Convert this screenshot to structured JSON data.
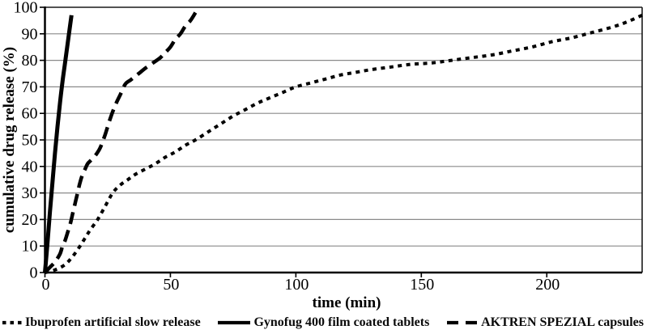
{
  "figure_name": "dissolution-profile-chart",
  "colors": {
    "line": "#000000",
    "grid": "#8a8a8a",
    "axis": "#000000",
    "border": "#1a1a1a",
    "text": "#000000",
    "background": "#ffffff"
  },
  "chart_data": {
    "type": "line",
    "title": "",
    "xlabel": "time (min)",
    "ylabel": "cumulative drug release (%)",
    "xlim": [
      0,
      238
    ],
    "ylim": [
      0,
      100
    ],
    "x_ticks": [
      0,
      50,
      100,
      150,
      200
    ],
    "y_ticks": [
      0,
      10,
      20,
      30,
      40,
      50,
      60,
      70,
      80,
      90,
      100
    ],
    "grid": "horizontal",
    "legend_position": "bottom",
    "series": [
      {
        "name": "Ibuprofen artificial slow release",
        "style": "dotted",
        "color": "#000000",
        "points": [
          [
            0,
            0
          ],
          [
            4,
            1
          ],
          [
            8,
            3
          ],
          [
            11,
            6
          ],
          [
            14,
            10
          ],
          [
            16,
            13
          ],
          [
            18,
            16
          ],
          [
            21,
            20
          ],
          [
            24,
            25
          ],
          [
            27,
            30
          ],
          [
            30,
            33
          ],
          [
            33,
            35
          ],
          [
            36,
            37
          ],
          [
            40,
            39
          ],
          [
            44,
            41
          ],
          [
            48,
            43.5
          ],
          [
            52,
            45.5
          ],
          [
            56,
            48
          ],
          [
            60,
            50
          ],
          [
            65,
            53
          ],
          [
            70,
            56
          ],
          [
            75,
            59
          ],
          [
            80,
            61.5
          ],
          [
            85,
            64
          ],
          [
            90,
            66
          ],
          [
            95,
            68
          ],
          [
            100,
            70
          ],
          [
            106,
            71.5
          ],
          [
            112,
            73
          ],
          [
            118,
            74.5
          ],
          [
            124,
            75.5
          ],
          [
            130,
            76.5
          ],
          [
            138,
            77.5
          ],
          [
            146,
            78.5
          ],
          [
            154,
            79
          ],
          [
            162,
            80
          ],
          [
            170,
            81
          ],
          [
            178,
            82
          ],
          [
            186,
            83.5
          ],
          [
            194,
            85
          ],
          [
            202,
            87
          ],
          [
            210,
            88.5
          ],
          [
            218,
            90.5
          ],
          [
            226,
            92.5
          ],
          [
            232,
            94.5
          ],
          [
            238,
            97
          ]
        ]
      },
      {
        "name": "Gynofug 400 film coated tablets",
        "style": "solid",
        "color": "#000000",
        "points": [
          [
            0,
            0
          ],
          [
            1,
            11
          ],
          [
            2,
            23
          ],
          [
            3,
            34
          ],
          [
            4,
            45
          ],
          [
            5,
            55
          ],
          [
            6,
            64
          ],
          [
            7,
            72
          ],
          [
            8,
            79
          ],
          [
            9,
            86
          ],
          [
            10,
            93
          ],
          [
            10.6,
            97
          ]
        ]
      },
      {
        "name": "AKTREN SPEZIAL capsules",
        "style": "dashed",
        "color": "#000000",
        "points": [
          [
            0,
            0
          ],
          [
            2,
            2
          ],
          [
            4,
            4
          ],
          [
            6,
            7
          ],
          [
            7,
            10
          ],
          [
            8,
            12
          ],
          [
            9,
            15
          ],
          [
            10,
            18
          ],
          [
            11,
            22
          ],
          [
            12,
            26
          ],
          [
            13,
            30
          ],
          [
            14,
            34
          ],
          [
            15,
            37
          ],
          [
            16,
            39
          ],
          [
            17,
            41
          ],
          [
            18,
            42
          ],
          [
            20,
            44
          ],
          [
            22,
            47
          ],
          [
            24,
            52
          ],
          [
            26,
            58
          ],
          [
            28,
            63
          ],
          [
            30,
            67
          ],
          [
            32,
            71
          ],
          [
            34,
            72.5
          ],
          [
            36,
            74
          ],
          [
            38,
            75.5
          ],
          [
            40,
            77
          ],
          [
            43,
            79
          ],
          [
            46,
            81
          ],
          [
            48,
            83
          ],
          [
            50,
            85
          ],
          [
            52,
            88
          ],
          [
            54,
            90
          ],
          [
            56,
            93
          ],
          [
            58,
            95
          ],
          [
            60,
            98
          ]
        ]
      }
    ]
  }
}
